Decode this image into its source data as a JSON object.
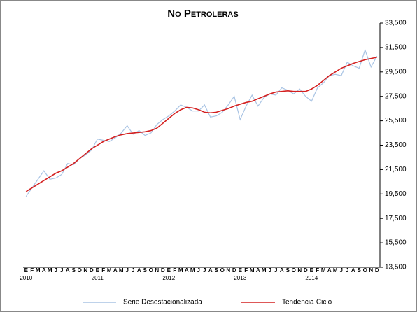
{
  "chart_data": {
    "type": "line",
    "title": "No Petroleras",
    "categories": [
      "E",
      "F",
      "M",
      "A",
      "M",
      "J",
      "J",
      "A",
      "S",
      "O",
      "N",
      "D",
      "E",
      "F",
      "M",
      "A",
      "M",
      "J",
      "J",
      "A",
      "S",
      "O",
      "N",
      "D",
      "E",
      "F",
      "M",
      "A",
      "M",
      "J",
      "J",
      "A",
      "S",
      "O",
      "N",
      "D",
      "E",
      "F",
      "M",
      "A",
      "M",
      "J",
      "J",
      "A",
      "S",
      "O",
      "N",
      "D",
      "E",
      "F",
      "M",
      "A",
      "M",
      "J",
      "J",
      "A",
      "S",
      "O",
      "N",
      "D"
    ],
    "years": [
      "2010",
      "2011",
      "2012",
      "2013",
      "2014"
    ],
    "series": [
      {
        "name": "Serie Desestacionalizada",
        "color": "#a9c4e4",
        "values": [
          19300,
          20000,
          20700,
          21400,
          20700,
          20800,
          21100,
          22000,
          21900,
          22400,
          22700,
          23100,
          24000,
          23900,
          23800,
          24100,
          24500,
          25100,
          24400,
          24700,
          24300,
          24500,
          25200,
          25600,
          25900,
          26300,
          26800,
          26600,
          26300,
          26300,
          26800,
          25800,
          25900,
          26200,
          26800,
          27500,
          25600,
          26700,
          27600,
          26700,
          27400,
          27700,
          27600,
          28200,
          28000,
          27700,
          28100,
          27500,
          27100,
          28200,
          28600,
          29200,
          29300,
          29200,
          30300,
          30000,
          29800,
          31300,
          29900,
          30800
        ]
      },
      {
        "name": "Tendencia-Ciclo",
        "color": "#d42020",
        "values": [
          19700,
          20000,
          20300,
          20600,
          20900,
          21200,
          21400,
          21700,
          22000,
          22400,
          22800,
          23200,
          23500,
          23800,
          24000,
          24200,
          24350,
          24450,
          24500,
          24550,
          24600,
          24700,
          24900,
          25300,
          25700,
          26100,
          26400,
          26600,
          26550,
          26400,
          26200,
          26150,
          26200,
          26350,
          26500,
          26700,
          26850,
          27000,
          27100,
          27300,
          27500,
          27700,
          27850,
          27900,
          27950,
          27900,
          27900,
          27900,
          28100,
          28400,
          28800,
          29200,
          29500,
          29800,
          30000,
          30200,
          30350,
          30500,
          30600,
          30700
        ]
      }
    ],
    "ylim": [
      13500,
      33500
    ],
    "yticks": [
      {
        "value": 13500,
        "label": "13,500"
      },
      {
        "value": 15500,
        "label": "15,500"
      },
      {
        "value": 17500,
        "label": "17,500"
      },
      {
        "value": 19500,
        "label": "19,500"
      },
      {
        "value": 21500,
        "label": "21,500"
      },
      {
        "value": 23500,
        "label": "23,500"
      },
      {
        "value": 25500,
        "label": "25,500"
      },
      {
        "value": 27500,
        "label": "27,500"
      },
      {
        "value": 29500,
        "label": "29,500"
      },
      {
        "value": 31500,
        "label": "31,500"
      },
      {
        "value": 33500,
        "label": "33,500"
      }
    ],
    "legend": "bottom"
  }
}
